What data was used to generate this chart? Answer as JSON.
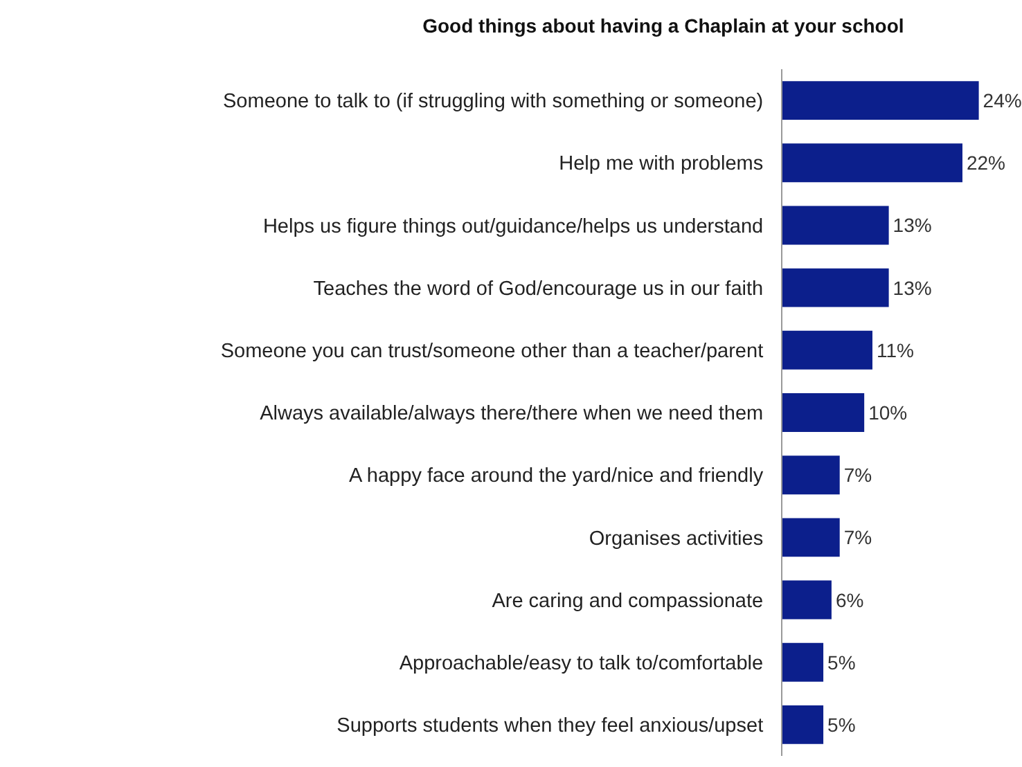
{
  "chart_data": {
    "type": "bar",
    "orientation": "horizontal",
    "title": "Good things about having a Chaplain at your school",
    "categories": [
      "Someone to talk to (if struggling with something or someone)",
      "Help me with problems",
      "Helps us figure things out/guidance/helps us understand",
      "Teaches the word of God/encourage us in our faith",
      "Someone you can trust/someone other than a teacher/parent",
      "Always available/always there/there when we need them",
      "A happy face around the yard/nice and friendly",
      "Organises activities",
      "Are caring and compassionate",
      "Approachable/easy to talk to/comfortable",
      "Supports students when they feel anxious/upset"
    ],
    "values": [
      24,
      22,
      13,
      13,
      11,
      10,
      7,
      7,
      6,
      5,
      5
    ],
    "value_labels": [
      "24%",
      "22%",
      "13%",
      "13%",
      "11%",
      "10%",
      "7%",
      "7%",
      "6%",
      "5%",
      "5%"
    ],
    "color": "#0c1f8c",
    "legend": false
  }
}
